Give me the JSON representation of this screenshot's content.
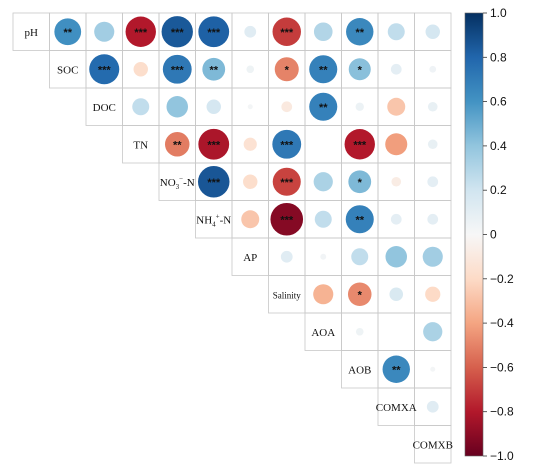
{
  "chart_data": {
    "type": "heatmap",
    "subtype": "correlation-matrix-upper-triangle-circles",
    "title": "",
    "variables": [
      "pH",
      "SOC",
      "DOC",
      "TN",
      "NO3-N",
      "NH4-N",
      "AP",
      "Salinity",
      "AOA",
      "AOB",
      "COMXA",
      "COMXB"
    ],
    "variable_labels": [
      {
        "text": "pH"
      },
      {
        "text": "SOC"
      },
      {
        "text": "DOC"
      },
      {
        "text": "TN"
      },
      {
        "text": "NO",
        "sub": "3",
        "sup": "−",
        "tail": "-N"
      },
      {
        "text": "NH",
        "sub": "4",
        "sup": "+",
        "tail": "-N"
      },
      {
        "text": "AP"
      },
      {
        "text": "Salinity"
      },
      {
        "text": "AOA"
      },
      {
        "text": "AOB"
      },
      {
        "text": "COMXA"
      },
      {
        "text": "COMXB"
      }
    ],
    "value_range": [
      -1,
      1
    ],
    "colorbar": {
      "ticks": [
        1.0,
        0.8,
        0.6,
        0.4,
        0.2,
        0,
        -0.2,
        -0.4,
        -0.6,
        -0.8,
        -1.0
      ],
      "tick_labels": [
        "1.0",
        "0.8",
        "0.6",
        "0.4",
        "0.2",
        "0",
        "−0.2",
        "−0.4",
        "−0.6",
        "−0.8",
        "−1.0"
      ],
      "colors": {
        "negative": "#67001f",
        "mid_negative": "#d6604d",
        "light_negative": "#fddbc7",
        "zero": "#f7f7f7",
        "light_positive": "#d1e5f0",
        "mid_positive": "#4393c3",
        "positive": "#053061"
      }
    },
    "cells": [
      {
        "row": "pH",
        "col": "SOC",
        "r": 0.62,
        "sig": "**"
      },
      {
        "row": "pH",
        "col": "DOC",
        "r": 0.35,
        "sig": ""
      },
      {
        "row": "pH",
        "col": "TN",
        "r": -0.8,
        "sig": "***"
      },
      {
        "row": "pH",
        "col": "NO3-N",
        "r": 0.85,
        "sig": "***"
      },
      {
        "row": "pH",
        "col": "NH4-N",
        "r": 0.82,
        "sig": "***"
      },
      {
        "row": "pH",
        "col": "AP",
        "r": 0.12,
        "sig": ""
      },
      {
        "row": "pH",
        "col": "Salinity",
        "r": -0.7,
        "sig": "***"
      },
      {
        "row": "pH",
        "col": "AOA",
        "r": 0.3,
        "sig": ""
      },
      {
        "row": "pH",
        "col": "AOB",
        "r": 0.65,
        "sig": "**"
      },
      {
        "row": "pH",
        "col": "COMXA",
        "r": 0.25,
        "sig": ""
      },
      {
        "row": "pH",
        "col": "COMXB",
        "r": 0.18,
        "sig": ""
      },
      {
        "row": "SOC",
        "col": "DOC",
        "r": 0.78,
        "sig": "***"
      },
      {
        "row": "SOC",
        "col": "TN",
        "r": -0.18,
        "sig": ""
      },
      {
        "row": "SOC",
        "col": "NO3-N",
        "r": 0.72,
        "sig": "***"
      },
      {
        "row": "SOC",
        "col": "NH4-N",
        "r": 0.45,
        "sig": "**"
      },
      {
        "row": "SOC",
        "col": "AP",
        "r": 0.05,
        "sig": ""
      },
      {
        "row": "SOC",
        "col": "Salinity",
        "r": -0.5,
        "sig": "*"
      },
      {
        "row": "SOC",
        "col": "AOA",
        "r": 0.68,
        "sig": "**"
      },
      {
        "row": "SOC",
        "col": "AOB",
        "r": 0.42,
        "sig": "*"
      },
      {
        "row": "SOC",
        "col": "COMXA",
        "r": 0.1,
        "sig": ""
      },
      {
        "row": "SOC",
        "col": "COMXB",
        "r": 0.04,
        "sig": ""
      },
      {
        "row": "DOC",
        "col": "TN",
        "r": 0.25,
        "sig": ""
      },
      {
        "row": "DOC",
        "col": "NO3-N",
        "r": 0.4,
        "sig": ""
      },
      {
        "row": "DOC",
        "col": "NH4-N",
        "r": 0.18,
        "sig": ""
      },
      {
        "row": "DOC",
        "col": "AP",
        "r": 0.02,
        "sig": ""
      },
      {
        "row": "DOC",
        "col": "Salinity",
        "r": -0.1,
        "sig": ""
      },
      {
        "row": "DOC",
        "col": "AOA",
        "r": 0.68,
        "sig": "**"
      },
      {
        "row": "DOC",
        "col": "AOB",
        "r": 0.06,
        "sig": ""
      },
      {
        "row": "DOC",
        "col": "COMXA",
        "r": -0.28,
        "sig": ""
      },
      {
        "row": "DOC",
        "col": "COMXB",
        "r": 0.08,
        "sig": ""
      },
      {
        "row": "TN",
        "col": "NO3-N",
        "r": -0.52,
        "sig": "**"
      },
      {
        "row": "TN",
        "col": "NH4-N",
        "r": -0.82,
        "sig": "***"
      },
      {
        "row": "TN",
        "col": "AP",
        "r": -0.15,
        "sig": ""
      },
      {
        "row": "TN",
        "col": "Salinity",
        "r": 0.72,
        "sig": "***"
      },
      {
        "row": "TN",
        "col": "AOA",
        "r": 0.0,
        "sig": ""
      },
      {
        "row": "TN",
        "col": "AOB",
        "r": -0.8,
        "sig": "***"
      },
      {
        "row": "TN",
        "col": "COMXA",
        "r": -0.42,
        "sig": ""
      },
      {
        "row": "TN",
        "col": "COMXB",
        "r": 0.08,
        "sig": ""
      },
      {
        "row": "NO3-N",
        "col": "NH4-N",
        "r": 0.86,
        "sig": "***"
      },
      {
        "row": "NO3-N",
        "col": "AP",
        "r": -0.18,
        "sig": ""
      },
      {
        "row": "NO3-N",
        "col": "Salinity",
        "r": -0.68,
        "sig": "***"
      },
      {
        "row": "NO3-N",
        "col": "AOA",
        "r": 0.32,
        "sig": ""
      },
      {
        "row": "NO3-N",
        "col": "AOB",
        "r": 0.45,
        "sig": "*"
      },
      {
        "row": "NO3-N",
        "col": "COMXA",
        "r": -0.08,
        "sig": ""
      },
      {
        "row": "NO3-N",
        "col": "COMXB",
        "r": 0.1,
        "sig": ""
      },
      {
        "row": "NH4-N",
        "col": "AP",
        "r": -0.28,
        "sig": ""
      },
      {
        "row": "NH4-N",
        "col": "Salinity",
        "r": -0.92,
        "sig": "***"
      },
      {
        "row": "NH4-N",
        "col": "AOA",
        "r": 0.25,
        "sig": ""
      },
      {
        "row": "NH4-N",
        "col": "AOB",
        "r": 0.68,
        "sig": "**"
      },
      {
        "row": "NH4-N",
        "col": "COMXA",
        "r": 0.1,
        "sig": ""
      },
      {
        "row": "NH4-N",
        "col": "COMXB",
        "r": 0.1,
        "sig": ""
      },
      {
        "row": "AP",
        "col": "Salinity",
        "r": 0.12,
        "sig": ""
      },
      {
        "row": "AP",
        "col": "AOA",
        "r": 0.03,
        "sig": ""
      },
      {
        "row": "AP",
        "col": "AOB",
        "r": 0.25,
        "sig": ""
      },
      {
        "row": "AP",
        "col": "COMXA",
        "r": 0.4,
        "sig": ""
      },
      {
        "row": "AP",
        "col": "COMXB",
        "r": 0.35,
        "sig": ""
      },
      {
        "row": "Salinity",
        "col": "AOA",
        "r": -0.35,
        "sig": ""
      },
      {
        "row": "Salinity",
        "col": "AOB",
        "r": -0.48,
        "sig": "*"
      },
      {
        "row": "Salinity",
        "col": "COMXA",
        "r": 0.16,
        "sig": ""
      },
      {
        "row": "Salinity",
        "col": "COMXB",
        "r": -0.2,
        "sig": ""
      },
      {
        "row": "AOA",
        "col": "AOB",
        "r": 0.05,
        "sig": ""
      },
      {
        "row": "AOA",
        "col": "COMXA",
        "r": 0.0,
        "sig": ""
      },
      {
        "row": "AOA",
        "col": "COMXB",
        "r": 0.32,
        "sig": ""
      },
      {
        "row": "AOB",
        "col": "COMXA",
        "r": 0.65,
        "sig": "**"
      },
      {
        "row": "AOB",
        "col": "COMXB",
        "r": 0.02,
        "sig": ""
      },
      {
        "row": "COMXA",
        "col": "COMXB",
        "r": 0.12,
        "sig": ""
      }
    ]
  }
}
